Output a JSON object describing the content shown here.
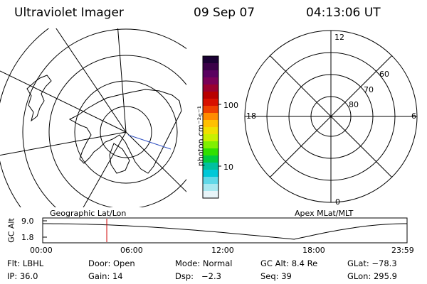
{
  "header": {
    "title": "Ultraviolet Imager",
    "date": "09 Sep 07",
    "time": "04:13:06 UT"
  },
  "colorbar": {
    "unit_label": "photon cm⁻²s⁻¹",
    "ticks": [
      "100",
      "10"
    ],
    "colors": [
      "#1a0033",
      "#3a0048",
      "#5a0060",
      "#7a0058",
      "#9a0030",
      "#b80000",
      "#d81000",
      "#ee4000",
      "#ff8c00",
      "#ffc000",
      "#f0e000",
      "#c8f000",
      "#80f000",
      "#30e000",
      "#00cc40",
      "#00c0a0",
      "#00c8d8",
      "#60d8e8",
      "#a8e8f0",
      "#e8f4f8"
    ]
  },
  "maps": {
    "left_caption": "Geographic Lat/Lon",
    "right_caption": "Apex MLat/MLT",
    "right_lat_labels": [
      "80",
      "70",
      "60"
    ],
    "right_mlt_labels": {
      "top": "12",
      "bottom": "0",
      "left": "18",
      "right": "6"
    }
  },
  "altitude_plot": {
    "ylabel": "GC Alt",
    "y_ticks": [
      "9.0",
      "1.8"
    ],
    "x_ticks": [
      "00:00",
      "06:00",
      "12:00",
      "18:00",
      "23:59"
    ],
    "current_time_hours": 4.22
  },
  "info": {
    "row1": {
      "flt": "Flt: LBHL",
      "door": "Door: Open",
      "mode": "Mode: Normal",
      "gcalt": "GC Alt: 8.4 Re",
      "glat": "GLat: −78.3"
    },
    "row2": {
      "ip": "IP: 36.0",
      "gain": "Gain: 14",
      "dsp": "Dsp:   −2.3",
      "seq": "Seq: 39",
      "glon": "GLon: 295.9"
    }
  }
}
